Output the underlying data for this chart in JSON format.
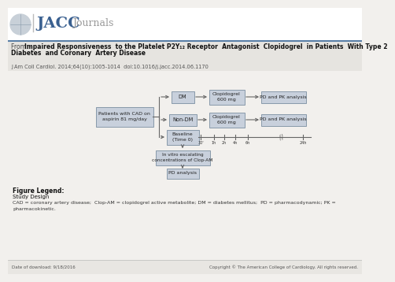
{
  "bg_color": "#f2f0ed",
  "header_bg": "#ffffff",
  "header_line_color": "#5a7fa8",
  "box_fill": "#c8d0dc",
  "box_border": "#8899aa",
  "arrow_color": "#666666",
  "footer_left": "Date of download: 9/18/2016",
  "footer_right": "Copyright © The American College of Cardiology. All rights reserved.",
  "figure_legend_title": "Figure Legend:",
  "figure_legend_line1": "Study Design",
  "figure_legend_line2": "CAD = coronary artery disease;  Clop-AM = clopidogrel active metabolite; DM = diabetes mellitus;  PD = pharmacodynamic; PK =",
  "figure_legend_line3": "pharmacokinetic.",
  "from_label": "From: ",
  "title_bold": "Impaired Responsiveness  to the Platelet P2Y₁₂ Receptor  Antagonist  Clopidogrel  in Patients  With Type 2",
  "title_bold2": "Diabetes  and Coronary  Artery Disease",
  "citation": "J Am Coll Cardiol. 2014;64(10):1005-1014  doi:10.1016/j.jacc.2014.06.1170",
  "jacc_text": "JACC",
  "journals_text": "Journals"
}
